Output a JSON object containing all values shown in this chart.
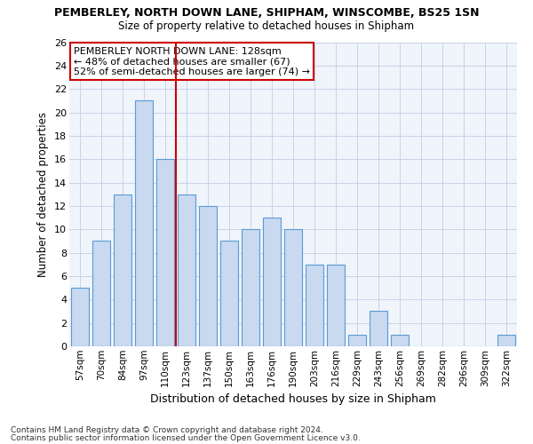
{
  "title1": "PEMBERLEY, NORTH DOWN LANE, SHIPHAM, WINSCOMBE, BS25 1SN",
  "title2": "Size of property relative to detached houses in Shipham",
  "xlabel": "Distribution of detached houses by size in Shipham",
  "ylabel": "Number of detached properties",
  "categories": [
    "57sqm",
    "70sqm",
    "84sqm",
    "97sqm",
    "110sqm",
    "123sqm",
    "137sqm",
    "150sqm",
    "163sqm",
    "176sqm",
    "190sqm",
    "203sqm",
    "216sqm",
    "229sqm",
    "243sqm",
    "256sqm",
    "269sqm",
    "282sqm",
    "296sqm",
    "309sqm",
    "322sqm"
  ],
  "values": [
    5,
    9,
    13,
    21,
    16,
    13,
    12,
    9,
    10,
    11,
    10,
    7,
    7,
    1,
    3,
    1,
    0,
    0,
    0,
    0,
    1
  ],
  "bar_color": "#c8d9f0",
  "bar_edge_color": "#5b9bd5",
  "grid_color": "#c8d4e8",
  "vline_color": "#cc0000",
  "vline_pos": 4.5,
  "annotation_text": "PEMBERLEY NORTH DOWN LANE: 128sqm\n← 48% of detached houses are smaller (67)\n52% of semi-detached houses are larger (74) →",
  "annotation_box_facecolor": "#ffffff",
  "annotation_box_edgecolor": "#cc0000",
  "footer1": "Contains HM Land Registry data © Crown copyright and database right 2024.",
  "footer2": "Contains public sector information licensed under the Open Government Licence v3.0.",
  "ylim": [
    0,
    26
  ],
  "yticks": [
    0,
    2,
    4,
    6,
    8,
    10,
    12,
    14,
    16,
    18,
    20,
    22,
    24,
    26
  ],
  "bg_color": "#f0f4fb",
  "fig_bg_color": "#ffffff",
  "bar_width": 0.85
}
